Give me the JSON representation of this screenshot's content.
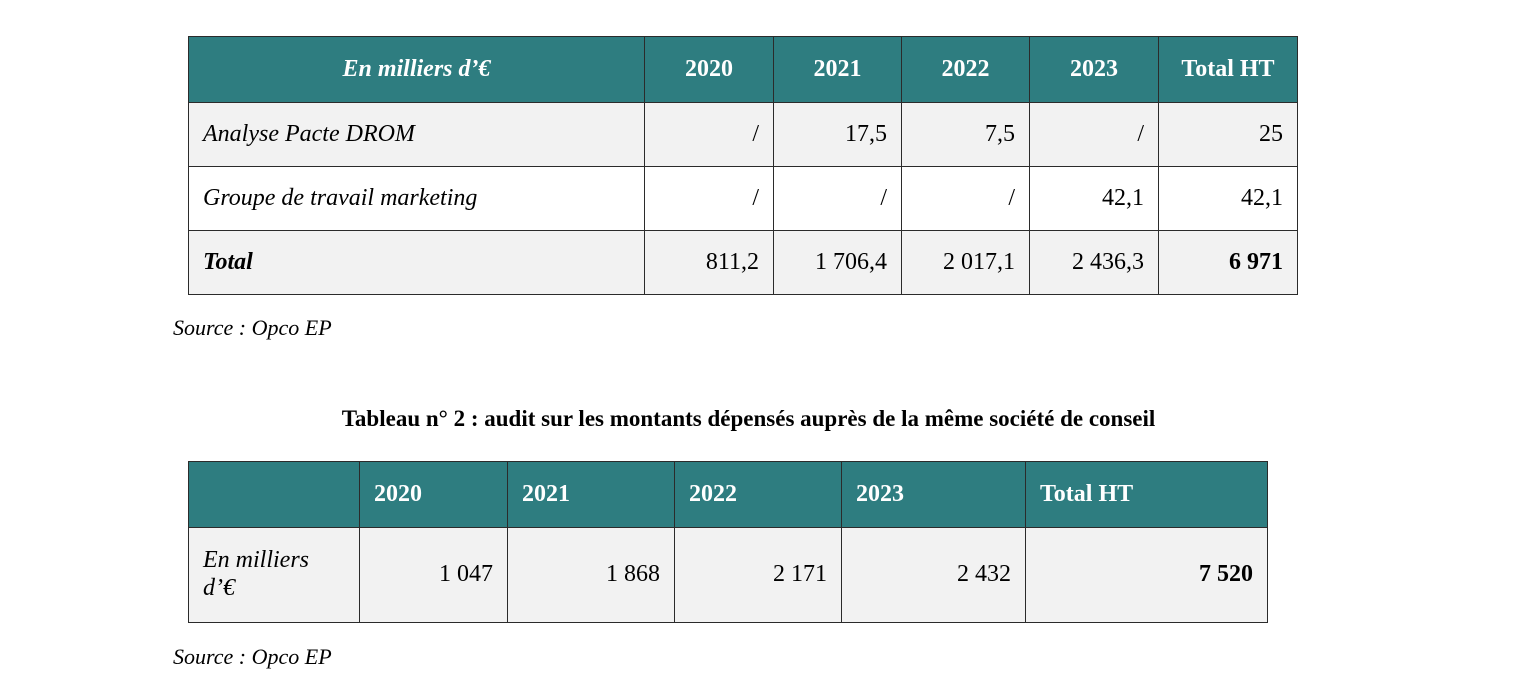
{
  "table1": {
    "header": [
      "En milliers d’€",
      "2020",
      "2021",
      "2022",
      "2023",
      "Total HT"
    ],
    "rows": [
      {
        "label": "Analyse Pacte DROM",
        "values": [
          "/",
          "17,5",
          "7,5",
          "/",
          "25"
        ]
      },
      {
        "label": "Groupe de travail marketing",
        "values": [
          "/",
          "/",
          "/",
          "42,1",
          "42,1"
        ]
      },
      {
        "label": "Total",
        "values": [
          "811,2",
          "1 706,4",
          "2 017,1",
          "2 436,3",
          "6 971"
        ]
      }
    ],
    "source": "Source : Opco EP"
  },
  "caption2": "Tableau n° 2 :  audit sur les montants dépensés auprès de la même société de conseil",
  "table2": {
    "header": [
      "",
      "2020",
      "2021",
      "2022",
      "2023",
      "Total HT"
    ],
    "row": {
      "label": "En milliers d’€",
      "values": [
        "1 047",
        "1 868",
        "2 171",
        "2 432",
        "7 520"
      ]
    },
    "source": "Source : Opco EP"
  },
  "colors": {
    "header_bg": "#2e7d80",
    "header_text": "#ffffff",
    "shaded_row": "#f2f2f2"
  }
}
